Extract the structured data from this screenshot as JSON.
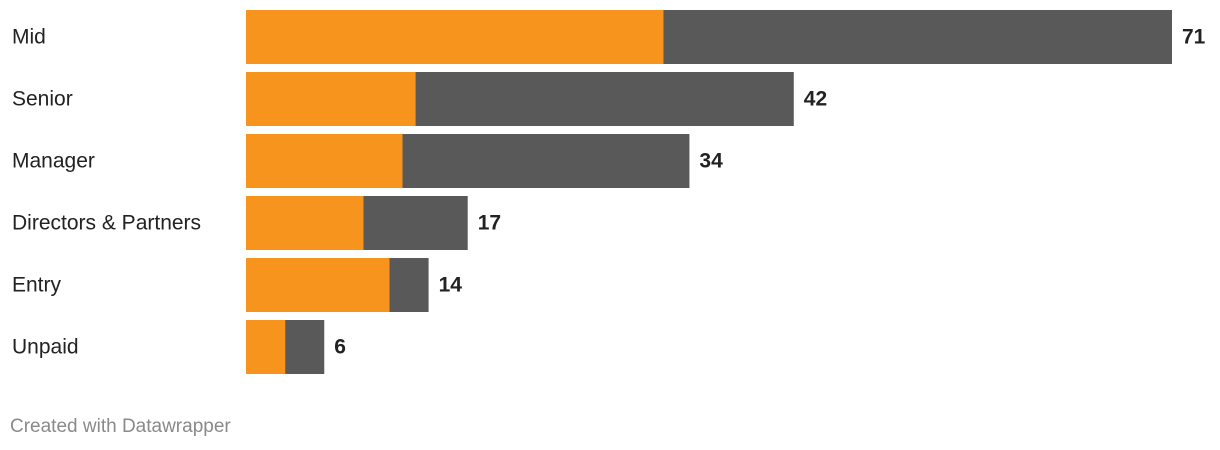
{
  "chart_data": {
    "type": "stacked-bar",
    "categories": [
      "Mid",
      "Senior",
      "Manager",
      "Directors & Partners",
      "Entry",
      "Unpaid"
    ],
    "series": [
      {
        "color": "#f7941d",
        "values": [
          32,
          13,
          12,
          9,
          11,
          3
        ]
      },
      {
        "color": "#595959",
        "values": [
          39,
          29,
          22,
          8,
          3,
          3
        ]
      }
    ],
    "totals": [
      71,
      42,
      34,
      17,
      14,
      6
    ],
    "credit": "Created with Datawrapper"
  }
}
